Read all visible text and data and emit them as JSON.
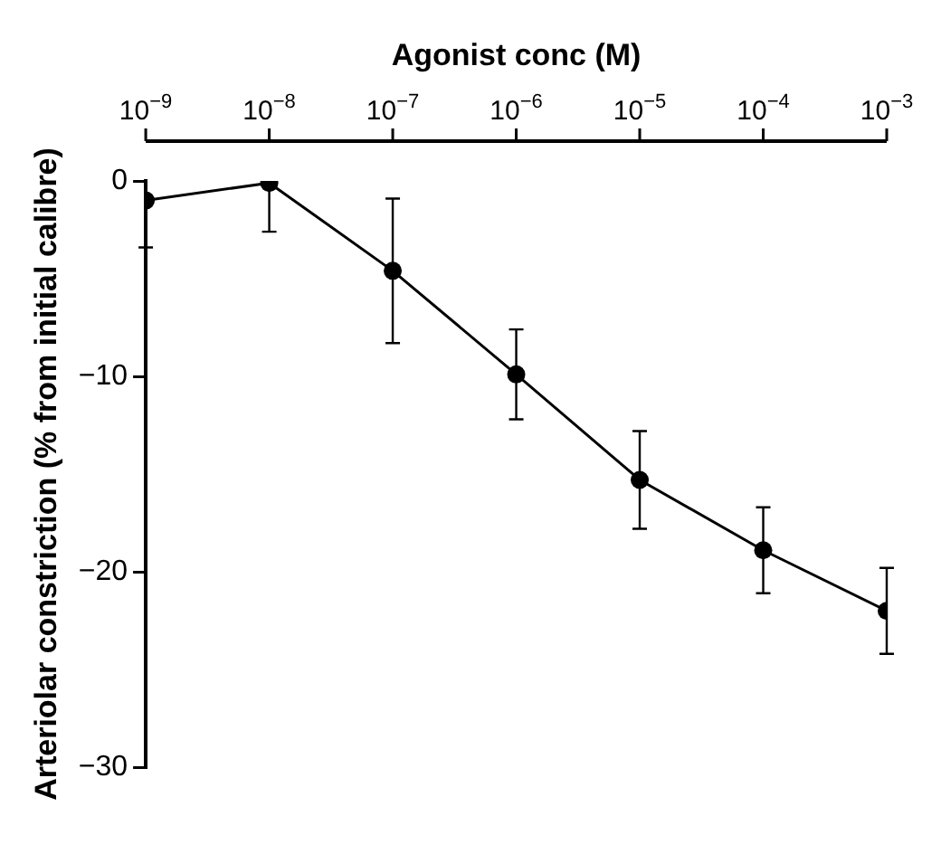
{
  "chart_data": {
    "type": "line",
    "xlabel": "Agonist conc (M)",
    "ylabel": "Arteriolar constriction (% from initial calibre)",
    "x": [
      1e-09,
      1e-08,
      1e-07,
      1e-06,
      1e-05,
      0.0001,
      0.001
    ],
    "series": [
      {
        "color": "#000000",
        "values": [
          -1.0,
          -0.1,
          -4.6,
          -9.9,
          -15.3,
          -18.9,
          -22.0
        ],
        "errors": [
          [
            -3.4,
            -1.0
          ],
          [
            -2.6,
            -0.1
          ],
          3.7,
          2.3,
          2.5,
          2.2,
          2.2
        ]
      }
    ],
    "log": "x",
    "xlim": [
      1e-09,
      0.001
    ],
    "xticks": [
      {
        "value": 1e-09,
        "label": "10$^{−9}$"
      },
      {
        "value": 1e-08,
        "label": "10$^{−8}$"
      },
      {
        "value": 1e-07,
        "label": "10$^{−7}$"
      },
      {
        "value": 1e-06,
        "label": "10$^{−6}$"
      },
      {
        "value": 1e-05,
        "label": "10$^{−5}$"
      },
      {
        "value": 0.0001,
        "label": "10$^{−4}$"
      },
      {
        "value": 0.001,
        "label": "10$^{−3}$"
      }
    ],
    "ylim": [
      -30,
      0
    ],
    "yticks": [
      0,
      {
        "value": -10,
        "label": "−10"
      },
      {
        "value": -20,
        "label": "−20"
      },
      {
        "value": -30,
        "label": "−30"
      }
    ],
    "grid": false,
    "legend": false,
    "marker": "circle",
    "line_style": "solid"
  }
}
